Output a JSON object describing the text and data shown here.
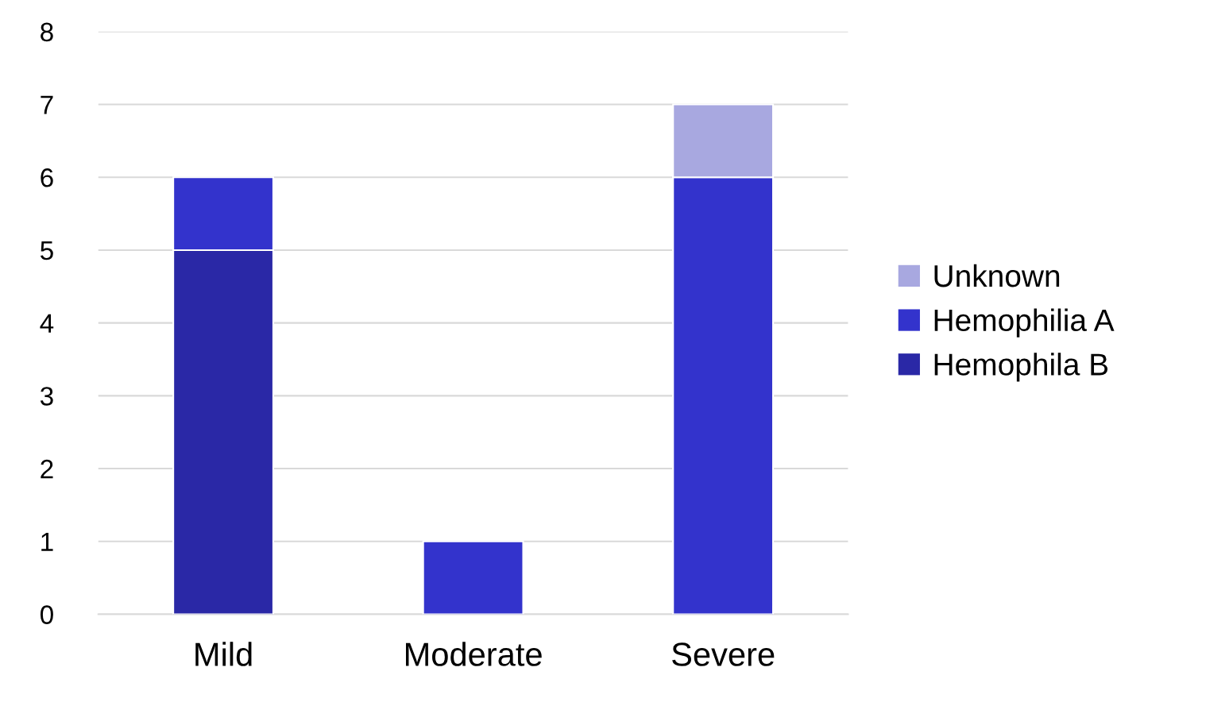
{
  "chart_data": {
    "type": "bar",
    "stacked": true,
    "categories": [
      "Mild",
      "Moderate",
      "Severe"
    ],
    "series": [
      {
        "name": "Hemophila B",
        "color": "#2a28a6",
        "values": [
          5,
          null,
          null
        ]
      },
      {
        "name": "Hemophilia A",
        "color": "#3333cc",
        "values": [
          1,
          1,
          6
        ]
      },
      {
        "name": "Unknown",
        "color": "#a8a8e0",
        "values": [
          null,
          null,
          1
        ]
      }
    ],
    "ylim": [
      0,
      8
    ],
    "yticks": [
      0,
      1,
      2,
      3,
      4,
      5,
      6,
      7,
      8
    ],
    "grid": "y",
    "legend": "right"
  }
}
